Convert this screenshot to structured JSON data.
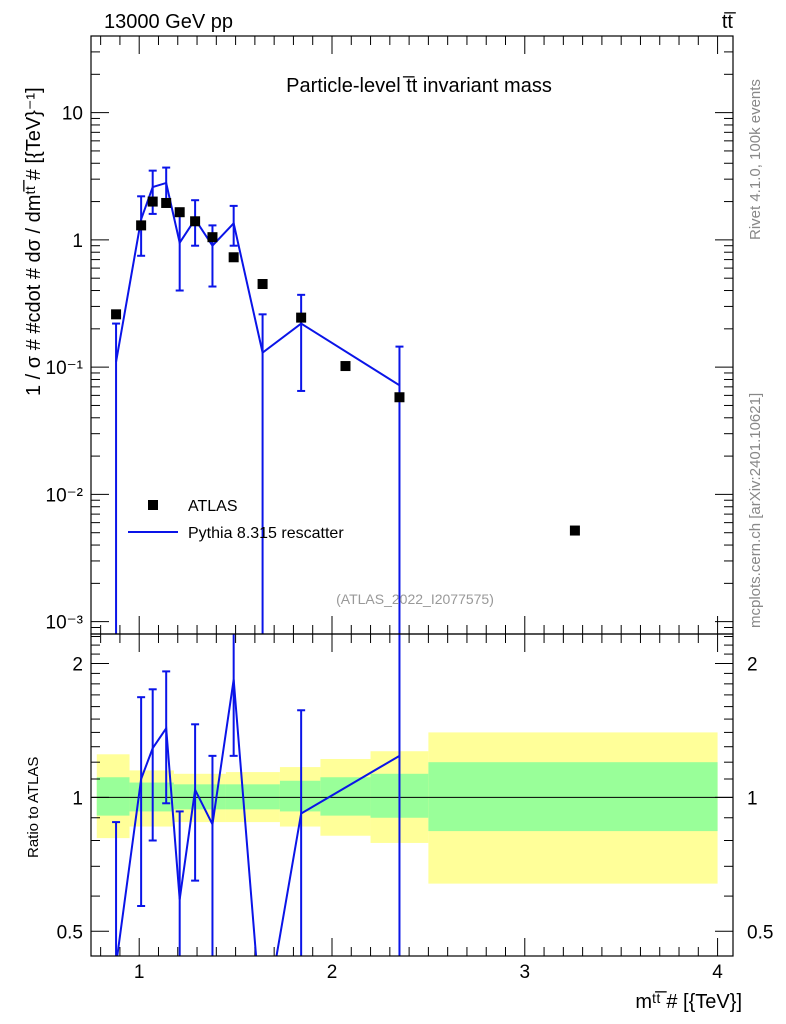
{
  "header": {
    "energy_label": "13000 GeV pp",
    "process_label": "tt̅",
    "plot_title": "Particle-level t̅t invariant mass",
    "reference_id": "(ATLAS_2022_I2077575)",
    "rivet_label": "Rivet 4.1.0,  100k events",
    "source_label": "mcplots.cern.ch [arXiv:2401.10621]"
  },
  "colors": {
    "data_marker": "#000000",
    "mc_line": "#0a14e8",
    "band_inner": "#99ff99",
    "band_outer": "#ffff99"
  },
  "chart_data": [
    {
      "type": "line",
      "title": "Particle-level t̅t invariant mass",
      "ylabel": "1 / σ # #cdot # dσ / dmᵗᵗ̅ # [{TeV}⁻¹]",
      "xlabel": "",
      "yscale": "log",
      "xlim": [
        0.75,
        4.08
      ],
      "ylim": [
        0.0008,
        40
      ],
      "grid": false,
      "legend_position": "bottom-left",
      "y_ticks": [
        {
          "value": 0.001,
          "label": "10⁻³"
        },
        {
          "value": 0.01,
          "label": "10⁻²"
        },
        {
          "value": 0.1,
          "label": "10⁻¹"
        },
        {
          "value": 1,
          "label": "1"
        },
        {
          "value": 10,
          "label": "10"
        }
      ],
      "series": [
        {
          "name": "ATLAS",
          "marker": "square",
          "points": [
            {
              "x": 0.88,
              "y": 0.26
            },
            {
              "x": 1.01,
              "y": 1.3
            },
            {
              "x": 1.07,
              "y": 2.0
            },
            {
              "x": 1.14,
              "y": 1.95
            },
            {
              "x": 1.21,
              "y": 1.65
            },
            {
              "x": 1.29,
              "y": 1.4
            },
            {
              "x": 1.38,
              "y": 1.05
            },
            {
              "x": 1.49,
              "y": 0.73
            },
            {
              "x": 1.64,
              "y": 0.45
            },
            {
              "x": 1.84,
              "y": 0.245
            },
            {
              "x": 2.07,
              "y": 0.102
            },
            {
              "x": 2.35,
              "y": 0.058
            },
            {
              "x": 3.26,
              "y": 0.0052
            }
          ]
        },
        {
          "name": "Pythia 8.315 rescatter",
          "marker": "line",
          "points": [
            {
              "x": 0.88,
              "y": 0.11,
              "lo": 0.0007,
              "hi": 0.22
            },
            {
              "x": 1.01,
              "y": 1.45,
              "lo": 0.75,
              "hi": 2.2
            },
            {
              "x": 1.07,
              "y": 2.6,
              "lo": 1.6,
              "hi": 3.5
            },
            {
              "x": 1.14,
              "y": 2.8,
              "lo": 1.9,
              "hi": 3.7
            },
            {
              "x": 1.21,
              "y": 0.95,
              "lo": 0.4,
              "hi": 1.55
            },
            {
              "x": 1.29,
              "y": 1.45,
              "lo": 0.9,
              "hi": 2.05
            },
            {
              "x": 1.38,
              "y": 0.9,
              "lo": 0.43,
              "hi": 1.3
            },
            {
              "x": 1.49,
              "y": 1.35,
              "lo": 0.9,
              "hi": 1.85
            },
            {
              "x": 1.64,
              "y": 0.13,
              "lo": 0.0007,
              "hi": 0.26
            },
            {
              "x": 1.84,
              "y": 0.22,
              "lo": 0.065,
              "hi": 0.37
            },
            {
              "x": 2.35,
              "y": 0.072,
              "lo": 0.0007,
              "hi": 0.145
            }
          ]
        }
      ]
    },
    {
      "type": "line",
      "title": "",
      "ylabel": "Ratio to ATLAS",
      "xlabel": "mᵗᵗ̅ # [{TeV}]",
      "yscale": "log",
      "xlim": [
        0.75,
        4.08
      ],
      "ylim": [
        0.44,
        2.33
      ],
      "grid": false,
      "reference_line": 1,
      "y_ticks": [
        {
          "value": 0.5,
          "label": "0.5"
        },
        {
          "value": 1,
          "label": "1"
        },
        {
          "value": 2,
          "label": "2"
        }
      ],
      "x_ticks": [
        {
          "value": 1,
          "label": "1"
        },
        {
          "value": 2,
          "label": "2"
        },
        {
          "value": 3,
          "label": "3"
        },
        {
          "value": 4,
          "label": "4"
        }
      ],
      "bands": [
        {
          "x0": 0.78,
          "x1": 0.95,
          "inner": [
            0.91,
            1.11
          ],
          "outer": [
            0.81,
            1.25
          ]
        },
        {
          "x0": 0.95,
          "x1": 1.18,
          "inner": [
            0.93,
            1.08
          ],
          "outer": [
            0.86,
            1.15
          ]
        },
        {
          "x0": 1.18,
          "x1": 1.45,
          "inner": [
            0.94,
            1.07
          ],
          "outer": [
            0.88,
            1.13
          ]
        },
        {
          "x0": 1.45,
          "x1": 1.73,
          "inner": [
            0.94,
            1.07
          ],
          "outer": [
            0.88,
            1.14
          ]
        },
        {
          "x0": 1.73,
          "x1": 1.94,
          "inner": [
            0.93,
            1.09
          ],
          "outer": [
            0.86,
            1.17
          ]
        },
        {
          "x0": 1.94,
          "x1": 2.2,
          "inner": [
            0.91,
            1.11
          ],
          "outer": [
            0.82,
            1.22
          ]
        },
        {
          "x0": 2.2,
          "x1": 2.5,
          "inner": [
            0.9,
            1.13
          ],
          "outer": [
            0.79,
            1.27
          ]
        },
        {
          "x0": 2.5,
          "x1": 4.0,
          "inner": [
            0.84,
            1.2
          ],
          "outer": [
            0.64,
            1.4
          ]
        }
      ],
      "series": [
        {
          "name": "Pythia 8.315 rescatter",
          "points": [
            {
              "x": 0.88,
              "y": 0.42,
              "lo": 0.3,
              "hi": 0.88
            },
            {
              "x": 1.01,
              "y": 1.1,
              "lo": 0.57,
              "hi": 1.68
            },
            {
              "x": 1.07,
              "y": 1.29,
              "lo": 0.8,
              "hi": 1.75
            },
            {
              "x": 1.14,
              "y": 1.43,
              "lo": 0.97,
              "hi": 1.92
            },
            {
              "x": 1.21,
              "y": 0.59,
              "lo": 0.3,
              "hi": 0.93
            },
            {
              "x": 1.29,
              "y": 1.04,
              "lo": 0.65,
              "hi": 1.46
            },
            {
              "x": 1.38,
              "y": 0.87,
              "lo": 0.41,
              "hi": 1.24
            },
            {
              "x": 1.49,
              "y": 1.84,
              "lo": 1.24,
              "hi": 2.33
            },
            {
              "x": 1.64,
              "y": 0.29,
              "lo": 0.1,
              "hi": 0.44
            },
            {
              "x": 1.84,
              "y": 0.92,
              "lo": 0.27,
              "hi": 1.57
            },
            {
              "x": 2.35,
              "y": 1.24,
              "lo": 0.1,
              "hi": 2.5
            }
          ]
        }
      ]
    }
  ]
}
